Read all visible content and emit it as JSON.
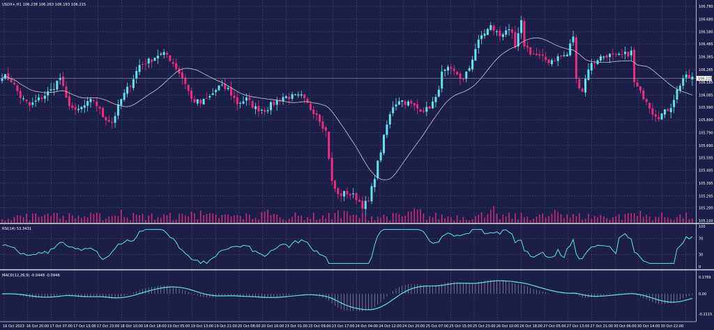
{
  "header": {
    "symbol_label": "USDX+,H1  106.238 106.263 106.193 106.215",
    "rsi_label": "RSI(14) 53.3431",
    "macd_label": "MACD(12,26,9) -0.0448 -0.0946"
  },
  "colors": {
    "background": "#1b1e46",
    "grid": "#6a6f9a",
    "bull": "#62e2ee",
    "bear": "#ea2d7d",
    "ma": "#c9ccd8",
    "rsi": "#62e2ee",
    "macd": "#62e2ee",
    "hist": "#a0a4b8",
    "divider": "#d8dae6",
    "text": "#ffffff"
  },
  "chart_data": [
    {
      "type": "candlestick",
      "panel": "price",
      "y_ticks": [
        "106.780",
        "106.680",
        "106.580",
        "106.485",
        "106.385",
        "106.285",
        "106.185",
        "106.085",
        "105.990",
        "105.890",
        "105.790",
        "105.690",
        "105.595",
        "105.495",
        "105.395",
        "105.295",
        "105.200",
        "105.100"
      ],
      "ylim": [
        105.1,
        106.78
      ],
      "last_price_label": "106.215",
      "last_price": 106.215,
      "moving_average": true,
      "volume_bars": true,
      "x_ticks": [
        "16 Oct 2023",
        "16 Oct 20:00",
        "17 Oct 07:00",
        "17 Oct 15:00",
        "17 Oct 23:00",
        "18 Oct 10:00",
        "18 Oct 18:00",
        "19 Oct 05:00",
        "19 Oct 13:00",
        "19 Oct 21:00",
        "20 Oct 08:00",
        "20 Oct 16:00",
        "23 Oct 01:00",
        "23 Oct 09:00",
        "23 Oct 17:00",
        "24 Oct 04:00",
        "24 Oct 12:00",
        "24 Oct 20:00",
        "25 Oct 07:00",
        "25 Oct 15:00",
        "25 Oct 23:00",
        "26 Oct 10:00",
        "26 Oct 18:00",
        "27 Oct 05:00",
        "27 Oct 13:00",
        "27 Oct 21:00",
        "30 Oct 06:00",
        "30 Oct 14:00",
        "30 Oct 22:00"
      ],
      "close_path": [
        {
          "i": 0,
          "c": 106.24
        },
        {
          "i": 3,
          "c": 106.2
        },
        {
          "i": 6,
          "c": 106.07
        },
        {
          "i": 9,
          "c": 106.0
        },
        {
          "i": 12,
          "c": 106.05
        },
        {
          "i": 16,
          "c": 106.12
        },
        {
          "i": 19,
          "c": 106.22
        },
        {
          "i": 21,
          "c": 106.05
        },
        {
          "i": 24,
          "c": 105.95
        },
        {
          "i": 27,
          "c": 106.0
        },
        {
          "i": 30,
          "c": 106.05
        },
        {
          "i": 33,
          "c": 105.92
        },
        {
          "i": 36,
          "c": 105.87
        },
        {
          "i": 39,
          "c": 106.05
        },
        {
          "i": 42,
          "c": 106.17
        },
        {
          "i": 45,
          "c": 106.32
        },
        {
          "i": 48,
          "c": 106.35
        },
        {
          "i": 51,
          "c": 106.4
        },
        {
          "i": 54,
          "c": 106.4
        },
        {
          "i": 57,
          "c": 106.3
        },
        {
          "i": 60,
          "c": 106.18
        },
        {
          "i": 62,
          "c": 106.05
        },
        {
          "i": 65,
          "c": 106.02
        },
        {
          "i": 68,
          "c": 106.07
        },
        {
          "i": 71,
          "c": 106.15
        },
        {
          "i": 74,
          "c": 106.13
        },
        {
          "i": 77,
          "c": 106.02
        },
        {
          "i": 80,
          "c": 106.05
        },
        {
          "i": 83,
          "c": 105.98
        },
        {
          "i": 86,
          "c": 105.97
        },
        {
          "i": 89,
          "c": 106.02
        },
        {
          "i": 92,
          "c": 106.07
        },
        {
          "i": 95,
          "c": 106.07
        },
        {
          "i": 98,
          "c": 106.07
        },
        {
          "i": 101,
          "c": 105.98
        },
        {
          "i": 103,
          "c": 105.94
        },
        {
          "i": 106,
          "c": 105.8
        },
        {
          "i": 108,
          "c": 105.4
        },
        {
          "i": 110,
          "c": 105.3
        },
        {
          "i": 113,
          "c": 105.32
        },
        {
          "i": 116,
          "c": 105.28
        },
        {
          "i": 118,
          "c": 105.22
        },
        {
          "i": 120,
          "c": 105.25
        },
        {
          "i": 122,
          "c": 105.45
        },
        {
          "i": 124,
          "c": 105.65
        },
        {
          "i": 126,
          "c": 105.85
        },
        {
          "i": 128,
          "c": 106.0
        },
        {
          "i": 130,
          "c": 106.05
        },
        {
          "i": 133,
          "c": 106.02
        },
        {
          "i": 136,
          "c": 105.98
        },
        {
          "i": 139,
          "c": 105.97
        },
        {
          "i": 142,
          "c": 106.05
        },
        {
          "i": 144,
          "c": 106.25
        },
        {
          "i": 146,
          "c": 106.28
        },
        {
          "i": 149,
          "c": 106.25
        },
        {
          "i": 151,
          "c": 106.2
        },
        {
          "i": 153,
          "c": 106.3
        },
        {
          "i": 155,
          "c": 106.45
        },
        {
          "i": 157,
          "c": 106.55
        },
        {
          "i": 160,
          "c": 106.62
        },
        {
          "i": 163,
          "c": 106.55
        },
        {
          "i": 165,
          "c": 106.6
        },
        {
          "i": 167,
          "c": 106.55
        },
        {
          "i": 168,
          "c": 106.45
        },
        {
          "i": 170,
          "c": 106.65
        },
        {
          "i": 171,
          "c": 106.48
        },
        {
          "i": 173,
          "c": 106.42
        },
        {
          "i": 176,
          "c": 106.38
        },
        {
          "i": 179,
          "c": 106.35
        },
        {
          "i": 182,
          "c": 106.38
        },
        {
          "i": 185,
          "c": 106.4
        },
        {
          "i": 187,
          "c": 106.55
        },
        {
          "i": 188,
          "c": 106.2
        },
        {
          "i": 190,
          "c": 106.12
        },
        {
          "i": 192,
          "c": 106.3
        },
        {
          "i": 195,
          "c": 106.37
        },
        {
          "i": 198,
          "c": 106.4
        },
        {
          "i": 201,
          "c": 106.38
        },
        {
          "i": 204,
          "c": 106.4
        },
        {
          "i": 206,
          "c": 106.42
        },
        {
          "i": 207,
          "c": 106.18
        },
        {
          "i": 209,
          "c": 106.1
        },
        {
          "i": 211,
          "c": 106.05
        },
        {
          "i": 213,
          "c": 105.95
        },
        {
          "i": 215,
          "c": 105.92
        },
        {
          "i": 217,
          "c": 105.95
        },
        {
          "i": 219,
          "c": 106.0
        },
        {
          "i": 221,
          "c": 106.12
        },
        {
          "i": 223,
          "c": 106.22
        }
      ]
    },
    {
      "type": "line",
      "panel": "rsi",
      "name": "RSI(14)",
      "y_ticks": [
        "100",
        "70",
        "30",
        "0"
      ],
      "ylim": [
        0,
        100
      ],
      "levels": [
        70,
        30
      ],
      "value": 53.3431
    },
    {
      "type": "line+histogram",
      "panel": "macd",
      "name": "MACD(12,26,9)",
      "y_ticks": [
        "0.1789",
        "0.00",
        "-0.2115"
      ],
      "ylim": [
        -0.25,
        0.2
      ],
      "signal_value": -0.0448,
      "value": -0.0946
    }
  ]
}
